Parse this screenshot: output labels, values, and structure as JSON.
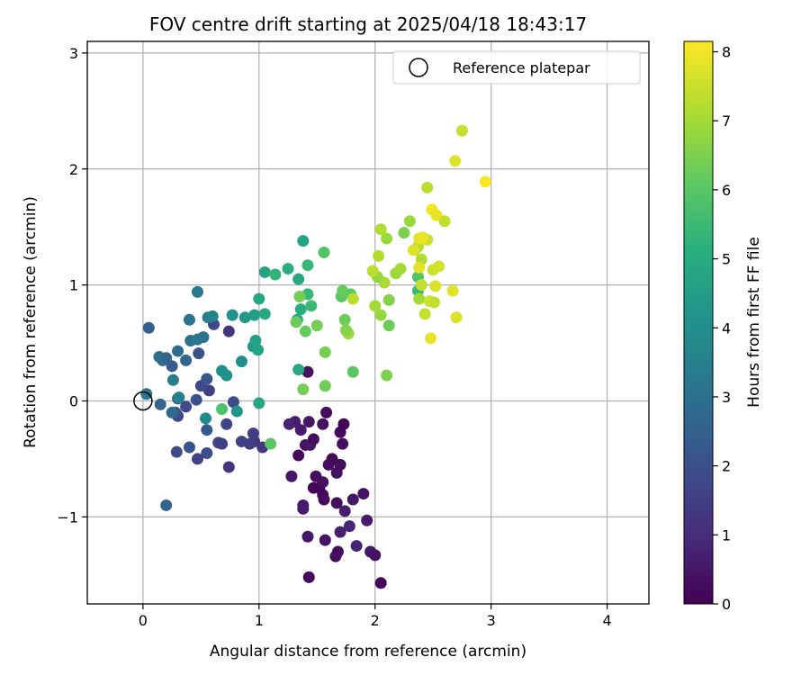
{
  "chart_data": {
    "type": "scatter",
    "title": "FOV centre drift starting at 2025/04/18 18:43:17",
    "xlabel": "Angular distance from reference (arcmin)",
    "ylabel": "Rotation from reference (arcmin)",
    "xlim": [
      -0.48,
      4.36
    ],
    "ylim": [
      -1.75,
      3.1
    ],
    "xticks": [
      0,
      1,
      2,
      3,
      4
    ],
    "yticks": [
      -1,
      0,
      1,
      2,
      3
    ],
    "grid": true,
    "legend": {
      "position": "top-right",
      "entries": [
        "Reference platepar"
      ]
    },
    "reference_point": {
      "x": 0,
      "y": 0,
      "marker": "open-circle"
    },
    "colorbar": {
      "label": "Hours from first FF file",
      "range": [
        0,
        8.15
      ],
      "ticks": [
        0,
        1,
        2,
        3,
        4,
        5,
        6,
        7,
        8
      ],
      "colormap": "viridis"
    },
    "points": [
      {
        "x": 1.43,
        "y": -1.52,
        "c": 0.2
      },
      {
        "x": 2.05,
        "y": -1.57,
        "c": 0.1
      },
      {
        "x": 1.66,
        "y": -1.34,
        "c": 0.3
      },
      {
        "x": 1.57,
        "y": -1.2,
        "c": 0.4
      },
      {
        "x": 1.42,
        "y": -1.17,
        "c": 0.5
      },
      {
        "x": 1.38,
        "y": -0.93,
        "c": 0.6
      },
      {
        "x": 1.7,
        "y": -1.13,
        "c": 0.7
      },
      {
        "x": 1.78,
        "y": -1.08,
        "c": 0.9
      },
      {
        "x": 1.84,
        "y": -1.25,
        "c": 0.8
      },
      {
        "x": 1.96,
        "y": -1.3,
        "c": 0.5
      },
      {
        "x": 2.0,
        "y": -1.33,
        "c": 0.4
      },
      {
        "x": 1.93,
        "y": -1.03,
        "c": 0.6
      },
      {
        "x": 1.68,
        "y": -1.3,
        "c": 0.3
      },
      {
        "x": 1.74,
        "y": -0.95,
        "c": 0.7
      },
      {
        "x": 1.81,
        "y": -0.85,
        "c": 0.5
      },
      {
        "x": 1.9,
        "y": -0.8,
        "c": 0.4
      },
      {
        "x": 1.67,
        "y": -0.88,
        "c": 0.3
      },
      {
        "x": 1.56,
        "y": -0.85,
        "c": 0.2
      },
      {
        "x": 1.52,
        "y": -0.75,
        "c": 0.2
      },
      {
        "x": 1.49,
        "y": -0.65,
        "c": 0.3
      },
      {
        "x": 1.47,
        "y": -0.75,
        "c": 0.1
      },
      {
        "x": 1.55,
        "y": -0.81,
        "c": 0.2
      },
      {
        "x": 1.6,
        "y": -0.55,
        "c": 0.3
      },
      {
        "x": 1.67,
        "y": -0.62,
        "c": 0.4
      },
      {
        "x": 1.7,
        "y": -0.55,
        "c": 0.3
      },
      {
        "x": 1.63,
        "y": -0.5,
        "c": 0.2
      },
      {
        "x": 1.55,
        "y": -0.7,
        "c": 0.3
      },
      {
        "x": 1.4,
        "y": -0.38,
        "c": 0.4
      },
      {
        "x": 1.44,
        "y": -0.38,
        "c": 0.5
      },
      {
        "x": 1.34,
        "y": -0.47,
        "c": 0.2
      },
      {
        "x": 1.28,
        "y": -0.65,
        "c": 0.5
      },
      {
        "x": 1.47,
        "y": -0.33,
        "c": 0.3
      },
      {
        "x": 1.36,
        "y": -0.25,
        "c": 0.6
      },
      {
        "x": 1.43,
        "y": -0.18,
        "c": 0.5
      },
      {
        "x": 1.58,
        "y": -0.1,
        "c": 0.3
      },
      {
        "x": 1.55,
        "y": -0.2,
        "c": 0.4
      },
      {
        "x": 1.7,
        "y": -0.27,
        "c": 0.2
      },
      {
        "x": 1.72,
        "y": -0.37,
        "c": 0.3
      },
      {
        "x": 1.73,
        "y": -0.2,
        "c": 0.1
      },
      {
        "x": 1.31,
        "y": -0.18,
        "c": 0.7
      },
      {
        "x": 1.26,
        "y": -0.2,
        "c": 0.8
      },
      {
        "x": 1.42,
        "y": 0.25,
        "c": 0.4
      },
      {
        "x": 1.38,
        "y": -0.9,
        "c": 0.6
      },
      {
        "x": 0.96,
        "y": -0.35,
        "c": 1.4
      },
      {
        "x": 1.03,
        "y": -0.4,
        "c": 1.3
      },
      {
        "x": 0.92,
        "y": -0.37,
        "c": 1.5
      },
      {
        "x": 0.85,
        "y": -0.35,
        "c": 1.6
      },
      {
        "x": 0.74,
        "y": -0.57,
        "c": 1.2
      },
      {
        "x": 0.65,
        "y": -0.36,
        "c": 1.8
      },
      {
        "x": 0.68,
        "y": -0.37,
        "c": 1.5
      },
      {
        "x": 0.55,
        "y": -0.45,
        "c": 1.9
      },
      {
        "x": 0.47,
        "y": -0.5,
        "c": 1.6
      },
      {
        "x": 0.4,
        "y": -0.4,
        "c": 2.1
      },
      {
        "x": 0.29,
        "y": -0.44,
        "c": 1.9
      },
      {
        "x": 0.3,
        "y": -0.13,
        "c": 1.7
      },
      {
        "x": 0.28,
        "y": -0.1,
        "c": 2.0
      },
      {
        "x": 0.37,
        "y": -0.05,
        "c": 1.8
      },
      {
        "x": 0.46,
        "y": 0.01,
        "c": 2.1
      },
      {
        "x": 0.57,
        "y": 0.09,
        "c": 1.5
      },
      {
        "x": 0.5,
        "y": 0.13,
        "c": 1.8
      },
      {
        "x": 0.55,
        "y": 0.19,
        "c": 2.2
      },
      {
        "x": 0.48,
        "y": 0.41,
        "c": 2.0
      },
      {
        "x": 0.74,
        "y": 0.6,
        "c": 1.3
      },
      {
        "x": 0.61,
        "y": 0.66,
        "c": 1.8
      },
      {
        "x": 0.78,
        "y": -0.01,
        "c": 1.9
      },
      {
        "x": 0.95,
        "y": -0.28,
        "c": 1.5
      },
      {
        "x": 0.72,
        "y": -0.2,
        "c": 1.7
      },
      {
        "x": 0.55,
        "y": -0.25,
        "c": 2.3
      },
      {
        "x": 0.2,
        "y": -0.9,
        "c": 2.6
      },
      {
        "x": 0.3,
        "y": 0.02,
        "c": 2.4
      },
      {
        "x": 0.25,
        "y": -0.1,
        "c": 2.8
      },
      {
        "x": 0.15,
        "y": -0.03,
        "c": 2.6
      },
      {
        "x": 0.05,
        "y": 0.63,
        "c": 2.4
      },
      {
        "x": 0.17,
        "y": 0.35,
        "c": 2.8
      },
      {
        "x": 0.25,
        "y": 0.3,
        "c": 2.3
      },
      {
        "x": 0.2,
        "y": 0.37,
        "c": 2.6
      },
      {
        "x": 0.37,
        "y": 0.35,
        "c": 2.7
      },
      {
        "x": 0.41,
        "y": 0.52,
        "c": 3.0
      },
      {
        "x": 0.47,
        "y": 0.53,
        "c": 3.2
      },
      {
        "x": 0.52,
        "y": 0.55,
        "c": 3.1
      },
      {
        "x": 0.3,
        "y": 0.43,
        "c": 2.9
      },
      {
        "x": 0.14,
        "y": 0.38,
        "c": 2.9
      },
      {
        "x": 0.03,
        "y": 0.06,
        "c": 3.2
      },
      {
        "x": 0.26,
        "y": 0.18,
        "c": 3.4
      },
      {
        "x": 0.31,
        "y": 0.03,
        "c": 3.5
      },
      {
        "x": 0.4,
        "y": 0.7,
        "c": 3.2
      },
      {
        "x": 0.47,
        "y": 0.94,
        "c": 3.3
      },
      {
        "x": 0.56,
        "y": 0.72,
        "c": 3.4
      },
      {
        "x": 0.6,
        "y": 0.73,
        "c": 3.6
      },
      {
        "x": 0.54,
        "y": -0.15,
        "c": 3.8
      },
      {
        "x": 0.68,
        "y": 0.26,
        "c": 3.9
      },
      {
        "x": 0.72,
        "y": 0.22,
        "c": 4.1
      },
      {
        "x": 0.85,
        "y": 0.34,
        "c": 4.0
      },
      {
        "x": 0.81,
        "y": -0.09,
        "c": 4.2
      },
      {
        "x": 0.77,
        "y": 0.74,
        "c": 4.1
      },
      {
        "x": 0.88,
        "y": 0.72,
        "c": 4.3
      },
      {
        "x": 0.96,
        "y": 0.74,
        "c": 4.5
      },
      {
        "x": 0.95,
        "y": 0.47,
        "c": 4.4
      },
      {
        "x": 0.97,
        "y": 0.52,
        "c": 4.6
      },
      {
        "x": 0.99,
        "y": 0.44,
        "c": 4.7
      },
      {
        "x": 1.0,
        "y": -0.02,
        "c": 4.8
      },
      {
        "x": 1.05,
        "y": 0.75,
        "c": 4.9
      },
      {
        "x": 1.0,
        "y": 0.88,
        "c": 4.8
      },
      {
        "x": 1.05,
        "y": 1.11,
        "c": 4.7
      },
      {
        "x": 1.14,
        "y": 1.09,
        "c": 5.3
      },
      {
        "x": 1.25,
        "y": 1.14,
        "c": 5.1
      },
      {
        "x": 1.34,
        "y": 1.05,
        "c": 4.9
      },
      {
        "x": 1.38,
        "y": 1.38,
        "c": 4.7
      },
      {
        "x": 1.42,
        "y": 1.17,
        "c": 5.4
      },
      {
        "x": 1.33,
        "y": 0.7,
        "c": 4.8
      },
      {
        "x": 1.36,
        "y": 0.79,
        "c": 5.1
      },
      {
        "x": 1.34,
        "y": 0.27,
        "c": 4.9
      },
      {
        "x": 1.42,
        "y": 0.92,
        "c": 5.4
      },
      {
        "x": 1.45,
        "y": 0.82,
        "c": 5.5
      },
      {
        "x": 1.56,
        "y": 1.28,
        "c": 5.9
      },
      {
        "x": 1.35,
        "y": 0.9,
        "c": 6.4
      },
      {
        "x": 1.32,
        "y": 0.68,
        "c": 6.3
      },
      {
        "x": 1.5,
        "y": 0.65,
        "c": 6.4
      },
      {
        "x": 1.4,
        "y": 0.6,
        "c": 6.2
      },
      {
        "x": 1.38,
        "y": 0.1,
        "c": 6.4
      },
      {
        "x": 1.57,
        "y": 0.13,
        "c": 6.3
      },
      {
        "x": 1.57,
        "y": 0.42,
        "c": 6.4
      },
      {
        "x": 1.1,
        "y": -0.37,
        "c": 6.0
      },
      {
        "x": 0.68,
        "y": -0.07,
        "c": 5.8
      },
      {
        "x": 1.71,
        "y": 0.9,
        "c": 6.0
      },
      {
        "x": 1.72,
        "y": 0.95,
        "c": 6.2
      },
      {
        "x": 1.79,
        "y": 0.92,
        "c": 6.1
      },
      {
        "x": 1.74,
        "y": 0.7,
        "c": 6.3
      },
      {
        "x": 1.77,
        "y": 0.58,
        "c": 6.9
      },
      {
        "x": 1.75,
        "y": 0.61,
        "c": 6.6
      },
      {
        "x": 1.81,
        "y": 0.25,
        "c": 6.0
      },
      {
        "x": 2.1,
        "y": 0.22,
        "c": 6.5
      },
      {
        "x": 2.12,
        "y": 0.65,
        "c": 6.3
      },
      {
        "x": 2.05,
        "y": 0.74,
        "c": 6.8
      },
      {
        "x": 2.0,
        "y": 0.82,
        "c": 7.0
      },
      {
        "x": 2.12,
        "y": 0.87,
        "c": 6.6
      },
      {
        "x": 2.18,
        "y": 1.1,
        "c": 6.9
      },
      {
        "x": 2.22,
        "y": 1.14,
        "c": 7.0
      },
      {
        "x": 2.08,
        "y": 1.02,
        "c": 7.1
      },
      {
        "x": 2.02,
        "y": 1.07,
        "c": 6.8
      },
      {
        "x": 1.98,
        "y": 1.12,
        "c": 7.3
      },
      {
        "x": 2.03,
        "y": 1.25,
        "c": 7.2
      },
      {
        "x": 2.1,
        "y": 1.4,
        "c": 6.9
      },
      {
        "x": 2.25,
        "y": 1.45,
        "c": 6.5
      },
      {
        "x": 2.3,
        "y": 1.55,
        "c": 6.9
      },
      {
        "x": 2.05,
        "y": 1.48,
        "c": 7.2
      },
      {
        "x": 1.81,
        "y": 0.88,
        "c": 7.3
      },
      {
        "x": 2.34,
        "y": 1.3,
        "c": 7.1
      },
      {
        "x": 2.37,
        "y": 1.33,
        "c": 7.3
      },
      {
        "x": 2.4,
        "y": 1.22,
        "c": 7.2
      },
      {
        "x": 2.37,
        "y": 1.07,
        "c": 5.9
      },
      {
        "x": 2.37,
        "y": 0.95,
        "c": 5.5
      },
      {
        "x": 2.43,
        "y": 0.75,
        "c": 7.4
      },
      {
        "x": 2.38,
        "y": 0.88,
        "c": 7.0
      },
      {
        "x": 2.38,
        "y": 1.15,
        "c": 7.8
      },
      {
        "x": 2.5,
        "y": 1.13,
        "c": 7.5
      },
      {
        "x": 2.55,
        "y": 1.16,
        "c": 7.6
      },
      {
        "x": 2.47,
        "y": 0.86,
        "c": 7.6
      },
      {
        "x": 2.51,
        "y": 0.85,
        "c": 7.4
      },
      {
        "x": 2.48,
        "y": 0.54,
        "c": 7.9
      },
      {
        "x": 2.52,
        "y": 0.99,
        "c": 7.7
      },
      {
        "x": 2.4,
        "y": 1.0,
        "c": 7.4
      },
      {
        "x": 2.38,
        "y": 1.4,
        "c": 7.8
      },
      {
        "x": 2.45,
        "y": 1.39,
        "c": 7.5
      },
      {
        "x": 2.45,
        "y": 1.84,
        "c": 7.3
      },
      {
        "x": 2.49,
        "y": 1.65,
        "c": 8.0
      },
      {
        "x": 2.53,
        "y": 1.6,
        "c": 7.9
      },
      {
        "x": 2.6,
        "y": 1.55,
        "c": 7.4
      },
      {
        "x": 2.67,
        "y": 0.95,
        "c": 7.8
      },
      {
        "x": 2.7,
        "y": 0.72,
        "c": 7.7
      },
      {
        "x": 2.69,
        "y": 2.07,
        "c": 7.7
      },
      {
        "x": 2.75,
        "y": 2.33,
        "c": 7.5
      },
      {
        "x": 2.95,
        "y": 1.89,
        "c": 8.1
      },
      {
        "x": 2.33,
        "y": 1.3,
        "c": 7.8
      },
      {
        "x": 2.41,
        "y": 1.41,
        "c": 7.9
      }
    ]
  }
}
